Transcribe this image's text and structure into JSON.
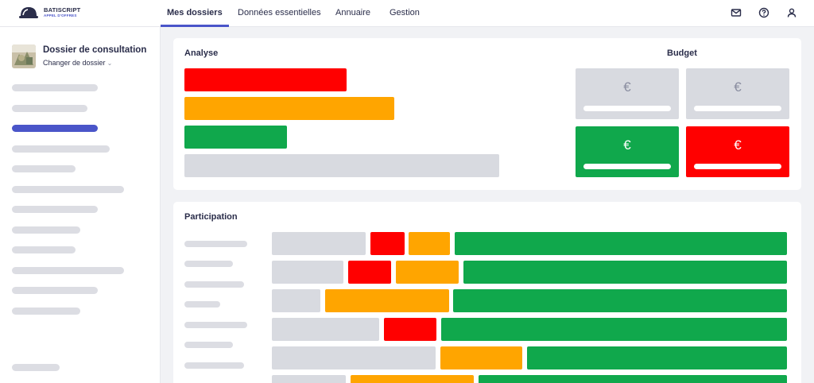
{
  "brand": {
    "name": "BATISCRIPT",
    "tagline": "APPEL D'OFFRES",
    "accent": "#4a55c9"
  },
  "nav": {
    "tabs": [
      {
        "label": "Mes dossiers",
        "active": true
      },
      {
        "label": "Données essentielles",
        "active": false
      },
      {
        "label": "Annuaire",
        "active": false
      },
      {
        "label": "Gestion",
        "active": false
      }
    ],
    "icons": [
      "mail-icon",
      "help-icon",
      "user-icon"
    ]
  },
  "sidebar": {
    "folder_title": "Dossier de consultation",
    "folder_change": "Changer de dossier",
    "active_item_index": 3
  },
  "analyse": {
    "title": "Analyse",
    "bars": [
      {
        "color": "#ff0000"
      },
      {
        "color": "#ffa500"
      },
      {
        "color": "#10a84c"
      },
      {
        "color": "#d8dae0"
      }
    ]
  },
  "budget": {
    "title": "Budget",
    "currency_symbol": "€",
    "boxes": [
      {
        "color": "#d8dae0"
      },
      {
        "color": "#d8dae0"
      },
      {
        "color": "#10a84c"
      },
      {
        "color": "#ff0000"
      }
    ]
  },
  "participation": {
    "title": "Participation",
    "colors": {
      "grey": "#d8dae0",
      "red": "#ff0000",
      "orange": "#ffa500",
      "green": "#10a84c"
    }
  }
}
